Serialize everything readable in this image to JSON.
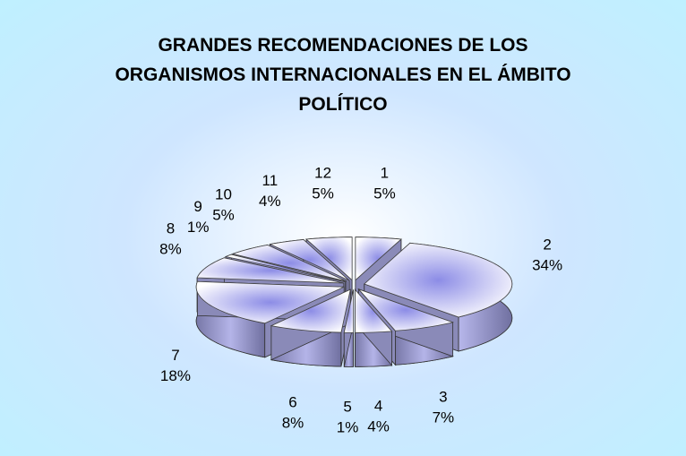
{
  "chart_data": {
    "type": "pie",
    "title": "GRANDES RECOMENDACIONES DE LOS ORGANISMOS INTERNACIONALES EN EL ÁMBITO POLÍTICO",
    "categories": [
      "1",
      "2",
      "3",
      "4",
      "5",
      "6",
      "7",
      "8",
      "9",
      "10",
      "11",
      "12"
    ],
    "values": [
      5,
      34,
      7,
      4,
      1,
      8,
      18,
      8,
      1,
      5,
      4,
      5
    ],
    "value_labels": [
      "5%",
      "34%",
      "7%",
      "4%",
      "1%",
      "8%",
      "18%",
      "8%",
      "1%",
      "5%",
      "4%",
      "5%"
    ]
  }
}
